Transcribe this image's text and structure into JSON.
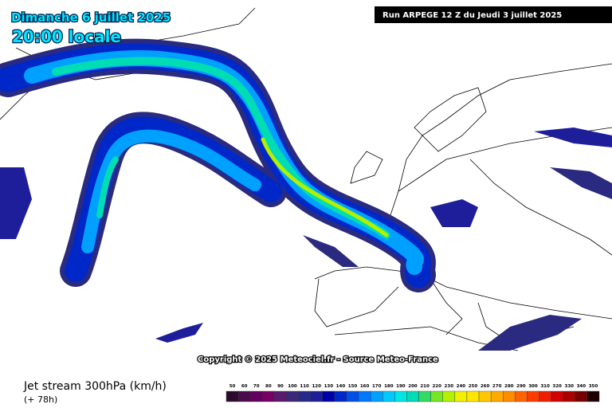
{
  "header": {
    "date": "Dimanche 6 juillet 2025",
    "time": "20:00 locale",
    "run": "Run ARPEGE 12 Z du Jeudi 3 juillet 2025"
  },
  "copyright": "Copyright © 2025 Meteociel.fr - Source Meteo-France",
  "footer": {
    "title": "Jet stream 300hPa (km/h)",
    "lead": "(+ 78h)"
  },
  "legend": {
    "values": [
      50,
      60,
      70,
      80,
      90,
      100,
      110,
      120,
      130,
      140,
      150,
      160,
      170,
      180,
      190,
      200,
      210,
      220,
      230,
      240,
      250,
      260,
      270,
      280,
      290,
      300,
      310,
      320,
      330,
      340,
      350
    ],
    "colors": [
      "#2d0a2d",
      "#4b0a4b",
      "#64005f",
      "#780064",
      "#5a1a6e",
      "#3c2878",
      "#28288c",
      "#1e1e9b",
      "#0000aa",
      "#0028c8",
      "#0050e6",
      "#0078ff",
      "#00a0ff",
      "#00c8ff",
      "#00e6e6",
      "#00dcb4",
      "#32dc64",
      "#78e628",
      "#b4f000",
      "#f0f000",
      "#ffe600",
      "#ffc800",
      "#ffaa00",
      "#ff8c00",
      "#ff6400",
      "#ff3c00",
      "#f01e00",
      "#d20000",
      "#aa0000",
      "#780000",
      "#1e0000"
    ]
  }
}
